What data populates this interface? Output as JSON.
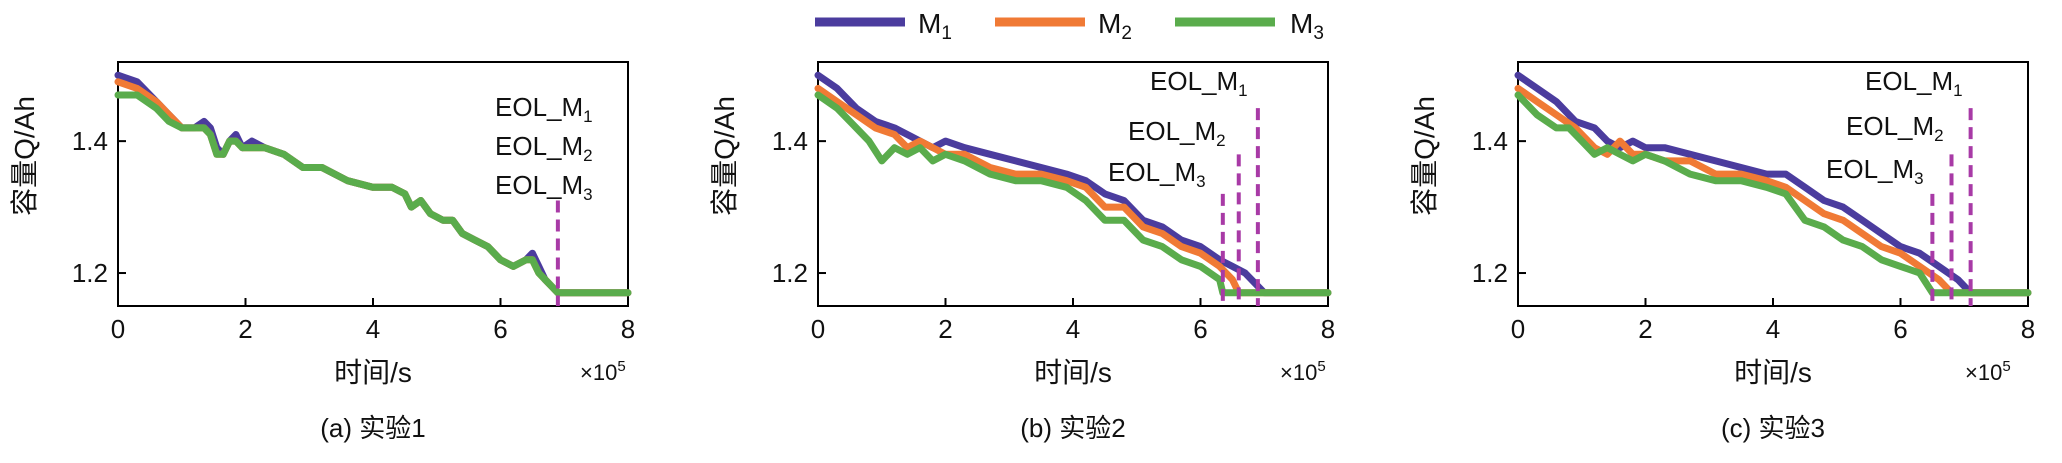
{
  "legend": [
    {
      "label_main": "M",
      "label_sub": "1",
      "color": "#4b3c9e"
    },
    {
      "label_main": "M",
      "label_sub": "2",
      "color": "#f07a35"
    },
    {
      "label_main": "M",
      "label_sub": "3",
      "color": "#5aac4c"
    }
  ],
  "chart_data": [
    {
      "type": "line",
      "caption": "(a) 实验1",
      "xlabel": "时间/s",
      "ylabel": "容量Q/Ah",
      "x_multiplier": "×10",
      "x_multiplier_exp": "5",
      "xlim": [
        0,
        8
      ],
      "ylim": [
        1.15,
        1.52
      ],
      "xticks": [
        "0",
        "2",
        "4",
        "6",
        "8"
      ],
      "yticks": [
        "1.2",
        "1.4"
      ],
      "series": [
        {
          "name": "M1",
          "color": "#4b3c9e",
          "x": [
            0,
            0.3,
            0.6,
            0.8,
            1.0,
            1.2,
            1.35,
            1.45,
            1.55,
            1.65,
            1.75,
            1.85,
            1.95,
            2.1,
            2.3,
            2.6,
            2.9,
            3.2,
            3.6,
            4.0,
            4.3,
            4.5,
            4.6,
            4.75,
            4.9,
            5.1,
            5.25,
            5.4,
            5.6,
            5.8,
            6.0,
            6.2,
            6.4,
            6.5,
            6.6,
            6.7,
            6.8,
            6.9,
            7.0,
            8.0
          ],
          "y": [
            1.5,
            1.49,
            1.46,
            1.44,
            1.42,
            1.42,
            1.43,
            1.42,
            1.39,
            1.38,
            1.4,
            1.41,
            1.39,
            1.4,
            1.39,
            1.38,
            1.36,
            1.36,
            1.34,
            1.33,
            1.33,
            1.32,
            1.3,
            1.31,
            1.29,
            1.28,
            1.28,
            1.26,
            1.25,
            1.24,
            1.22,
            1.21,
            1.22,
            1.23,
            1.21,
            1.19,
            1.18,
            1.17,
            1.17,
            1.17
          ]
        },
        {
          "name": "M2",
          "color": "#f07a35",
          "x": [
            0,
            0.3,
            0.6,
            0.8,
            1.0,
            1.2,
            1.35,
            1.45,
            1.55,
            1.65,
            1.75,
            1.85,
            1.95,
            2.1,
            2.3,
            2.6,
            2.9,
            3.2,
            3.6,
            4.0,
            4.3,
            4.5,
            4.6,
            4.75,
            4.9,
            5.1,
            5.25,
            5.4,
            5.6,
            5.8,
            6.0,
            6.2,
            6.4,
            6.5,
            6.6,
            6.7,
            6.8,
            6.9,
            7.0,
            8.0
          ],
          "y": [
            1.49,
            1.48,
            1.46,
            1.44,
            1.42,
            1.42,
            1.42,
            1.41,
            1.38,
            1.38,
            1.4,
            1.4,
            1.39,
            1.39,
            1.39,
            1.38,
            1.36,
            1.36,
            1.34,
            1.33,
            1.33,
            1.32,
            1.3,
            1.31,
            1.29,
            1.28,
            1.28,
            1.26,
            1.25,
            1.24,
            1.22,
            1.21,
            1.22,
            1.22,
            1.2,
            1.19,
            1.18,
            1.17,
            1.17,
            1.17
          ]
        },
        {
          "name": "M3",
          "color": "#5aac4c",
          "x": [
            0,
            0.3,
            0.6,
            0.8,
            1.0,
            1.2,
            1.35,
            1.45,
            1.55,
            1.65,
            1.75,
            1.85,
            1.95,
            2.1,
            2.3,
            2.6,
            2.9,
            3.2,
            3.6,
            4.0,
            4.3,
            4.5,
            4.6,
            4.75,
            4.9,
            5.1,
            5.25,
            5.4,
            5.6,
            5.8,
            6.0,
            6.2,
            6.4,
            6.5,
            6.6,
            6.7,
            6.8,
            6.9,
            7.0,
            8.0
          ],
          "y": [
            1.47,
            1.47,
            1.45,
            1.43,
            1.42,
            1.42,
            1.42,
            1.41,
            1.38,
            1.38,
            1.4,
            1.4,
            1.39,
            1.39,
            1.39,
            1.38,
            1.36,
            1.36,
            1.34,
            1.33,
            1.33,
            1.32,
            1.3,
            1.31,
            1.29,
            1.28,
            1.28,
            1.26,
            1.25,
            1.24,
            1.22,
            1.21,
            1.22,
            1.22,
            1.2,
            1.19,
            1.18,
            1.17,
            1.17,
            1.17
          ]
        }
      ],
      "eol_lines": [
        {
          "x": 6.9,
          "ytop": 1.31
        }
      ],
      "eol_labels": [
        {
          "main": "EOL_M",
          "sub": "1"
        },
        {
          "main": "EOL_M",
          "sub": "2"
        },
        {
          "main": "EOL_M",
          "sub": "3"
        }
      ]
    },
    {
      "type": "line",
      "caption": "(b) 实验2",
      "xlabel": "时间/s",
      "ylabel": "容量Q/Ah",
      "x_multiplier": "×10",
      "x_multiplier_exp": "5",
      "xlim": [
        0,
        8
      ],
      "ylim": [
        1.15,
        1.52
      ],
      "xticks": [
        "0",
        "2",
        "4",
        "6",
        "8"
      ],
      "yticks": [
        "1.2",
        "1.4"
      ],
      "series": [
        {
          "name": "M1",
          "color": "#4b3c9e",
          "x": [
            0,
            0.3,
            0.6,
            0.9,
            1.2,
            1.4,
            1.6,
            1.8,
            2.0,
            2.3,
            2.7,
            3.1,
            3.5,
            3.9,
            4.2,
            4.5,
            4.8,
            5.1,
            5.4,
            5.7,
            6.0,
            6.3,
            6.5,
            6.7,
            6.9,
            7.0,
            8.0
          ],
          "y": [
            1.5,
            1.48,
            1.45,
            1.43,
            1.42,
            1.41,
            1.4,
            1.39,
            1.4,
            1.39,
            1.38,
            1.37,
            1.36,
            1.35,
            1.34,
            1.32,
            1.31,
            1.28,
            1.27,
            1.25,
            1.24,
            1.22,
            1.21,
            1.2,
            1.18,
            1.17,
            1.17
          ]
        },
        {
          "name": "M2",
          "color": "#f07a35",
          "x": [
            0,
            0.3,
            0.6,
            0.9,
            1.2,
            1.4,
            1.6,
            1.8,
            2.0,
            2.3,
            2.7,
            3.1,
            3.5,
            3.9,
            4.2,
            4.5,
            4.8,
            5.1,
            5.4,
            5.7,
            6.0,
            6.3,
            6.5,
            6.6,
            8.0
          ],
          "y": [
            1.48,
            1.46,
            1.44,
            1.42,
            1.41,
            1.39,
            1.4,
            1.39,
            1.38,
            1.38,
            1.36,
            1.35,
            1.35,
            1.34,
            1.33,
            1.3,
            1.3,
            1.27,
            1.26,
            1.24,
            1.23,
            1.21,
            1.19,
            1.17,
            1.17
          ]
        },
        {
          "name": "M3",
          "color": "#5aac4c",
          "x": [
            0,
            0.3,
            0.6,
            0.8,
            1.0,
            1.2,
            1.4,
            1.6,
            1.8,
            2.0,
            2.3,
            2.7,
            3.1,
            3.5,
            3.9,
            4.2,
            4.5,
            4.8,
            5.1,
            5.4,
            5.7,
            6.0,
            6.3,
            6.35,
            8.0
          ],
          "y": [
            1.47,
            1.45,
            1.42,
            1.4,
            1.37,
            1.39,
            1.38,
            1.39,
            1.37,
            1.38,
            1.37,
            1.35,
            1.34,
            1.34,
            1.33,
            1.31,
            1.28,
            1.28,
            1.25,
            1.24,
            1.22,
            1.21,
            1.19,
            1.17,
            1.17
          ]
        }
      ],
      "eol_lines": [
        {
          "x": 6.9,
          "ytop": 1.45
        },
        {
          "x": 6.6,
          "ytop": 1.38
        },
        {
          "x": 6.35,
          "ytop": 1.32
        }
      ],
      "eol_labels": [
        {
          "main": "EOL_M",
          "sub": "1"
        },
        {
          "main": "EOL_M",
          "sub": "2"
        },
        {
          "main": "EOL_M",
          "sub": "3"
        }
      ]
    },
    {
      "type": "line",
      "caption": "(c) 实验3",
      "xlabel": "时间/s",
      "ylabel": "容量Q/Ah",
      "x_multiplier": "×10",
      "x_multiplier_exp": "5",
      "xlim": [
        0,
        8
      ],
      "ylim": [
        1.15,
        1.52
      ],
      "xticks": [
        "0",
        "2",
        "4",
        "6",
        "8"
      ],
      "yticks": [
        "1.2",
        "1.4"
      ],
      "series": [
        {
          "name": "M1",
          "color": "#4b3c9e",
          "x": [
            0,
            0.3,
            0.6,
            0.9,
            1.2,
            1.4,
            1.6,
            1.8,
            2.0,
            2.3,
            2.7,
            3.1,
            3.5,
            3.9,
            4.2,
            4.5,
            4.8,
            5.1,
            5.4,
            5.7,
            6.0,
            6.3,
            6.6,
            6.9,
            7.1,
            8.0
          ],
          "y": [
            1.5,
            1.48,
            1.46,
            1.43,
            1.42,
            1.4,
            1.39,
            1.4,
            1.39,
            1.39,
            1.38,
            1.37,
            1.36,
            1.35,
            1.35,
            1.33,
            1.31,
            1.3,
            1.28,
            1.26,
            1.24,
            1.23,
            1.21,
            1.19,
            1.17,
            1.17
          ]
        },
        {
          "name": "M2",
          "color": "#f07a35",
          "x": [
            0,
            0.3,
            0.6,
            0.9,
            1.2,
            1.4,
            1.6,
            1.8,
            2.0,
            2.3,
            2.7,
            3.1,
            3.5,
            3.9,
            4.2,
            4.5,
            4.8,
            5.1,
            5.4,
            5.7,
            6.0,
            6.3,
            6.6,
            6.8,
            8.0
          ],
          "y": [
            1.48,
            1.46,
            1.44,
            1.42,
            1.39,
            1.38,
            1.4,
            1.38,
            1.38,
            1.37,
            1.37,
            1.35,
            1.35,
            1.34,
            1.33,
            1.31,
            1.29,
            1.28,
            1.26,
            1.24,
            1.23,
            1.21,
            1.19,
            1.17,
            1.17
          ]
        },
        {
          "name": "M3",
          "color": "#5aac4c",
          "x": [
            0,
            0.3,
            0.6,
            0.8,
            1.0,
            1.2,
            1.4,
            1.6,
            1.8,
            2.0,
            2.3,
            2.7,
            3.1,
            3.5,
            3.9,
            4.2,
            4.5,
            4.8,
            5.1,
            5.4,
            5.7,
            6.0,
            6.3,
            6.5,
            8.0
          ],
          "y": [
            1.47,
            1.44,
            1.42,
            1.42,
            1.4,
            1.38,
            1.39,
            1.38,
            1.37,
            1.38,
            1.37,
            1.35,
            1.34,
            1.34,
            1.33,
            1.32,
            1.28,
            1.27,
            1.25,
            1.24,
            1.22,
            1.21,
            1.2,
            1.17,
            1.17
          ]
        }
      ],
      "eol_lines": [
        {
          "x": 7.1,
          "ytop": 1.45
        },
        {
          "x": 6.8,
          "ytop": 1.38
        },
        {
          "x": 6.5,
          "ytop": 1.32
        }
      ],
      "eol_labels": [
        {
          "main": "EOL_M",
          "sub": "1"
        },
        {
          "main": "EOL_M",
          "sub": "2"
        },
        {
          "main": "EOL_M",
          "sub": "3"
        }
      ]
    }
  ]
}
